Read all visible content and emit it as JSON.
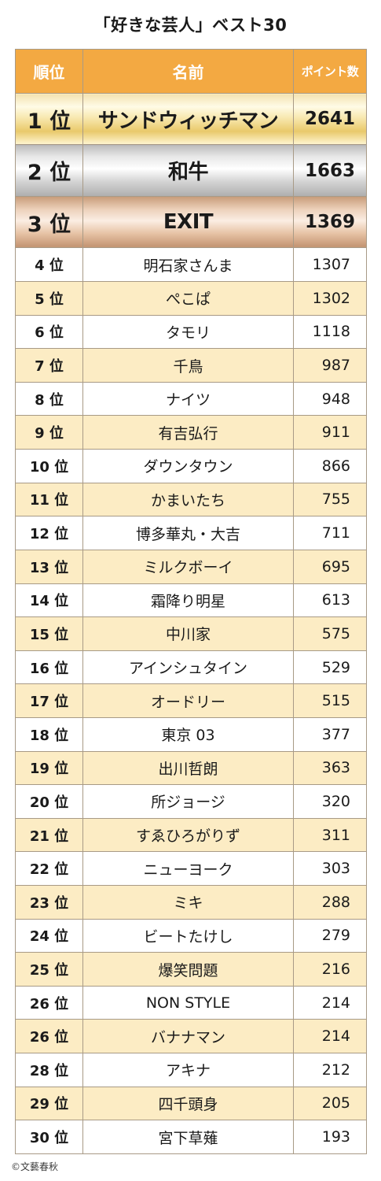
{
  "title": "「好きな芸人」ベスト30",
  "copyright": "©文藝春秋",
  "chart_data": {
    "type": "table",
    "columns": [
      "順位",
      "名前",
      "ポイント数"
    ],
    "rows": [
      {
        "rank": "1 位",
        "name": "サンドウィッチマン",
        "points": "2641"
      },
      {
        "rank": "2 位",
        "name": "和牛",
        "points": "1663"
      },
      {
        "rank": "3 位",
        "name": "EXIT",
        "points": "1369"
      },
      {
        "rank": "4 位",
        "name": "明石家さんま",
        "points": "1307"
      },
      {
        "rank": "5 位",
        "name": "ぺこぱ",
        "points": "1302"
      },
      {
        "rank": "6 位",
        "name": "タモリ",
        "points": "1118"
      },
      {
        "rank": "7 位",
        "name": "千鳥",
        "points": "987"
      },
      {
        "rank": "8 位",
        "name": "ナイツ",
        "points": "948"
      },
      {
        "rank": "9 位",
        "name": "有吉弘行",
        "points": "911"
      },
      {
        "rank": "10 位",
        "name": "ダウンタウン",
        "points": "866"
      },
      {
        "rank": "11 位",
        "name": "かまいたち",
        "points": "755"
      },
      {
        "rank": "12 位",
        "name": "博多華丸・大吉",
        "points": "711"
      },
      {
        "rank": "13 位",
        "name": "ミルクボーイ",
        "points": "695"
      },
      {
        "rank": "14 位",
        "name": "霜降り明星",
        "points": "613"
      },
      {
        "rank": "15 位",
        "name": "中川家",
        "points": "575"
      },
      {
        "rank": "16 位",
        "name": "アインシュタイン",
        "points": "529"
      },
      {
        "rank": "17 位",
        "name": "オードリー",
        "points": "515"
      },
      {
        "rank": "18 位",
        "name": "東京 03",
        "points": "377"
      },
      {
        "rank": "19 位",
        "name": "出川哲朗",
        "points": "363"
      },
      {
        "rank": "20 位",
        "name": "所ジョージ",
        "points": "320"
      },
      {
        "rank": "21 位",
        "name": "すゑひろがりず",
        "points": "311"
      },
      {
        "rank": "22 位",
        "name": "ニューヨーク",
        "points": "303"
      },
      {
        "rank": "23 位",
        "name": "ミキ",
        "points": "288"
      },
      {
        "rank": "24 位",
        "name": "ビートたけし",
        "points": "279"
      },
      {
        "rank": "25 位",
        "name": "爆笑問題",
        "points": "216"
      },
      {
        "rank": "26 位",
        "name": "NON STYLE",
        "points": "214"
      },
      {
        "rank": "26 位",
        "name": "バナナマン",
        "points": "214"
      },
      {
        "rank": "28 位",
        "name": "アキナ",
        "points": "212"
      },
      {
        "rank": "29 位",
        "name": "四千頭身",
        "points": "205"
      },
      {
        "rank": "30 位",
        "name": "宮下草薙",
        "points": "193"
      }
    ]
  },
  "colors": {
    "header_bg": "#f3a942",
    "header_text": "#ffffff",
    "stripe": "#fcecc4",
    "border": "#a89a86",
    "gold": "#e9c96b",
    "silver": "#d2d2d2",
    "bronze": "#e6c2a4"
  }
}
